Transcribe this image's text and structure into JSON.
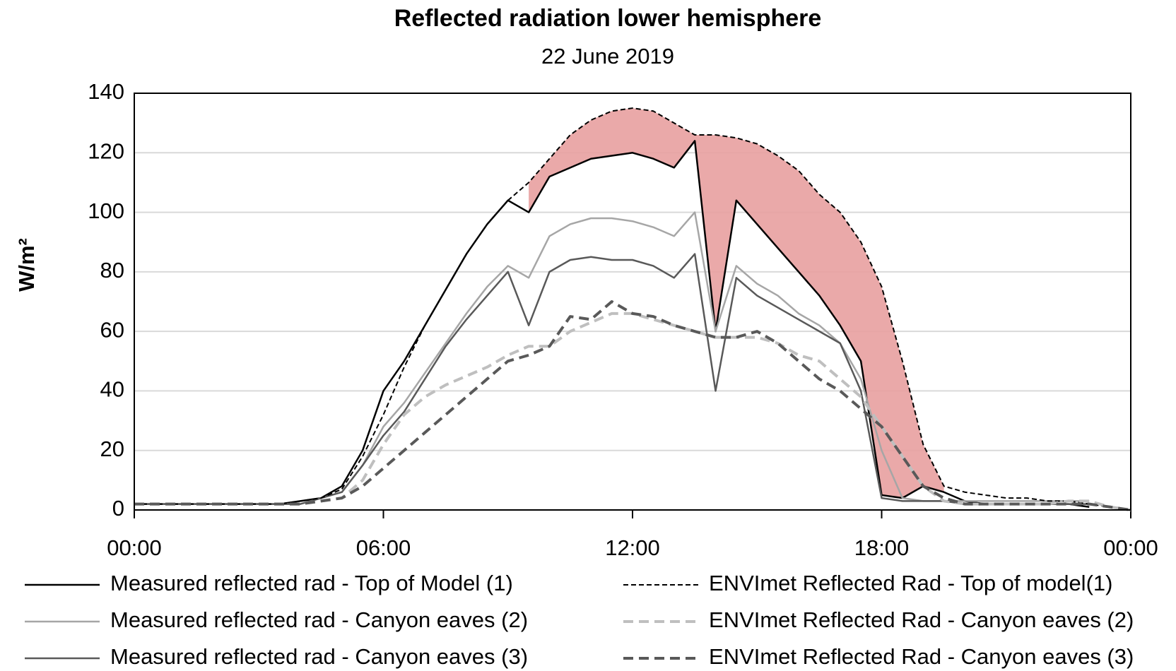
{
  "chart_data": {
    "type": "line",
    "title": "Reflected radiation lower hemisphere",
    "subtitle": "22 June 2019",
    "y_label": "W/m²",
    "x": [
      0,
      0.5,
      1,
      1.5,
      2,
      2.5,
      3,
      3.5,
      4,
      4.5,
      5,
      5.5,
      6,
      6.5,
      7,
      7.5,
      8,
      8.5,
      9,
      9.5,
      10,
      10.5,
      11,
      11.5,
      12,
      12.5,
      13,
      13.5,
      14,
      14.5,
      15,
      15.5,
      16,
      16.5,
      17,
      17.5,
      18,
      18.5,
      19,
      19.5,
      20,
      20.5,
      21,
      21.5,
      22,
      22.5,
      23,
      23.5,
      24
    ],
    "xlim": [
      0,
      24
    ],
    "xticks": [
      {
        "value": 0,
        "label": "00:00"
      },
      {
        "value": 6,
        "label": "06:00"
      },
      {
        "value": 12,
        "label": "12:00"
      },
      {
        "value": 18,
        "label": "18:00"
      },
      {
        "value": 24,
        "label": "00:00"
      }
    ],
    "ylim": [
      0,
      140
    ],
    "yticks": [
      0,
      20,
      40,
      60,
      80,
      100,
      120,
      140
    ],
    "grid": true,
    "legend": "bottom",
    "shade": {
      "color": "#e8a0a0",
      "upper": 3,
      "lower": 0,
      "x_from": 9.5,
      "x_to": 19.5
    },
    "series": [
      {
        "name": "Measured reflected rad - Top of Model (1)",
        "color": "#000000",
        "style": "solid",
        "values": [
          2,
          2,
          2,
          2,
          2,
          2,
          2,
          2,
          3,
          4,
          8,
          20,
          40,
          50,
          62,
          74,
          86,
          96,
          104,
          100,
          112,
          115,
          118,
          119,
          120,
          118,
          115,
          124,
          60,
          104,
          96,
          88,
          80,
          72,
          62,
          50,
          5,
          4,
          8,
          6,
          3,
          2,
          2,
          2,
          2,
          2,
          1,
          null,
          null
        ]
      },
      {
        "name": "Measured reflected rad - Canyon eaves (2)",
        "color": "#a6a6a6",
        "style": "solid",
        "values": [
          2,
          2,
          2,
          2,
          2,
          2,
          2,
          2,
          2,
          4,
          6,
          15,
          28,
          36,
          46,
          56,
          66,
          75,
          82,
          78,
          92,
          96,
          98,
          98,
          97,
          95,
          92,
          100,
          60,
          82,
          76,
          72,
          66,
          62,
          56,
          44,
          20,
          4,
          3,
          3,
          3,
          3,
          3,
          3,
          3,
          3,
          3,
          null,
          null
        ]
      },
      {
        "name": "Measured reflected rad - Canyon eaves  (3)",
        "color": "#595959",
        "style": "solid",
        "values": [
          2,
          2,
          2,
          2,
          2,
          2,
          2,
          2,
          2,
          4,
          6,
          15,
          25,
          33,
          44,
          55,
          64,
          72,
          80,
          62,
          80,
          84,
          85,
          84,
          84,
          82,
          78,
          86,
          40,
          78,
          72,
          68,
          64,
          60,
          56,
          40,
          4,
          3,
          3,
          3,
          2,
          2,
          2,
          2,
          2,
          2,
          2,
          null,
          null
        ]
      },
      {
        "name": "ENVImet Reflected Rad - Top of model(1)",
        "color": "#000000",
        "style": "dashed",
        "values": [
          2,
          2,
          2,
          2,
          2,
          2,
          2,
          2,
          3,
          4,
          7,
          18,
          32,
          48,
          62,
          74,
          86,
          96,
          104,
          110,
          118,
          126,
          131,
          134,
          135,
          134,
          130,
          126,
          126,
          125,
          123,
          119,
          114,
          106,
          100,
          90,
          75,
          50,
          22,
          8,
          6,
          5,
          4,
          4,
          3,
          3,
          2,
          1,
          0
        ]
      },
      {
        "name": "ENVImet Reflected Rad - Canyon eaves (2)",
        "color": "#bfbfbf",
        "style": "dashed",
        "values": [
          2,
          2,
          2,
          2,
          2,
          2,
          2,
          2,
          2,
          3,
          4,
          10,
          22,
          32,
          38,
          42,
          45,
          48,
          52,
          55,
          55,
          60,
          63,
          66,
          66,
          64,
          62,
          60,
          58,
          58,
          58,
          56,
          52,
          50,
          44,
          38,
          28,
          18,
          8,
          3,
          2,
          2,
          2,
          2,
          2,
          3,
          3,
          1,
          0
        ]
      },
      {
        "name": "ENVImet Reflected Rad - Canyon eaves (3)",
        "color": "#595959",
        "style": "dashed",
        "values": [
          2,
          2,
          2,
          2,
          2,
          2,
          2,
          2,
          2,
          3,
          4,
          8,
          14,
          20,
          26,
          32,
          38,
          44,
          50,
          52,
          55,
          65,
          64,
          70,
          66,
          65,
          62,
          60,
          58,
          58,
          60,
          56,
          50,
          44,
          40,
          34,
          28,
          18,
          8,
          4,
          2,
          2,
          2,
          2,
          2,
          2,
          2,
          1,
          0
        ]
      }
    ]
  }
}
